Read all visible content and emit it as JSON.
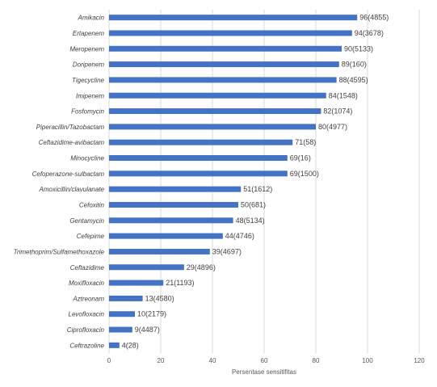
{
  "chart_data": {
    "type": "bar",
    "orientation": "horizontal",
    "title": "",
    "xlabel": "Persentase sensitifitas",
    "ylabel": "",
    "xlim": [
      0,
      120
    ],
    "xticks": [
      "0",
      "20",
      "40",
      "60",
      "80",
      "100",
      "120"
    ],
    "grid": true,
    "color": "#4472c4",
    "categories": [
      "Amikacin",
      "Ertapenem",
      "Meropenem",
      "Doripenem",
      "Tigecycline",
      "Imipenem",
      "Fosfomycin",
      "Piperacillin/Tazobactam",
      "Ceftazidime-avibactam",
      "Minocycline",
      "Cefoperazone-sulbactam",
      "Amoxicillin/clavulanate",
      "Cefoxitin",
      "Gentamycin",
      "Cefepime",
      "Trimethoprim/Sulfamethoxazole",
      "Ceftazidime",
      "Moxifloxacin",
      "Aztreonam",
      "Levofloxacin",
      "Ciprofloxacin",
      "Ceftrazoline"
    ],
    "values": [
      96,
      94,
      90,
      89,
      88,
      84,
      82,
      80,
      71,
      69,
      69,
      51,
      50,
      48,
      44,
      39,
      29,
      21,
      13,
      10,
      9,
      4
    ],
    "data_labels": [
      "96(4855)",
      "94(3678)",
      "90(5133)",
      "89(160)",
      "88(4595)",
      "84(1548)",
      "82(1074)",
      "80(4977)",
      "71(58)",
      "69(16)",
      "69(1500)",
      "51(1612)",
      "50(681)",
      "48(5134)",
      "44(4746)",
      "39(4697)",
      "29(4896)",
      "21(1193)",
      "13(4580)",
      "10(2179)",
      "9(4487)",
      "4(28)"
    ]
  }
}
